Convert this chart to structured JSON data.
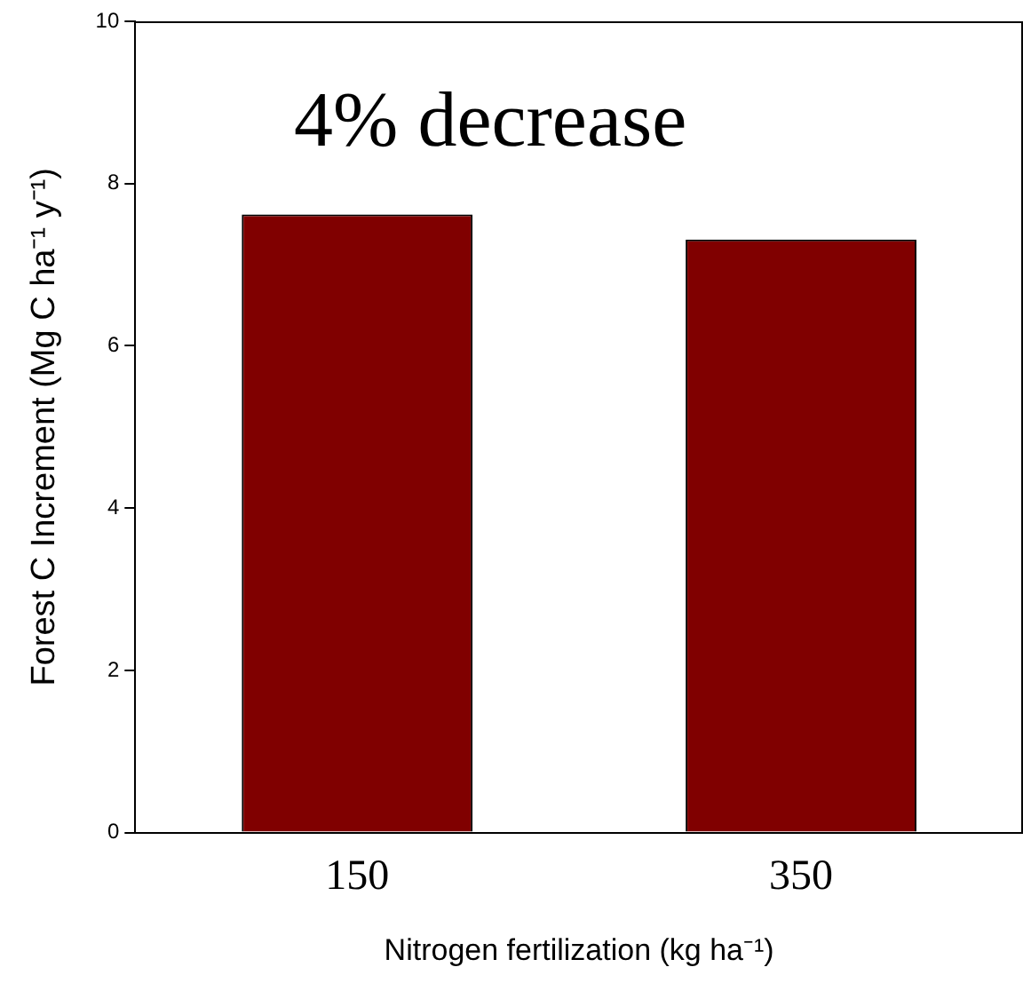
{
  "chart_data": {
    "type": "bar",
    "categories": [
      "150",
      "350"
    ],
    "values": [
      7.62,
      7.31
    ],
    "color": "#800000",
    "xlabel": "Nitrogen fertilization (kg ha⁻¹)",
    "ylabel": "Forest C Increment (Mg C ha⁻¹ y⁻¹)",
    "ylim": [
      0,
      10
    ],
    "yticks": [
      0,
      2,
      4,
      6,
      8,
      10
    ],
    "grid": false,
    "legend": false,
    "annotations": [
      "4% decrease"
    ]
  }
}
